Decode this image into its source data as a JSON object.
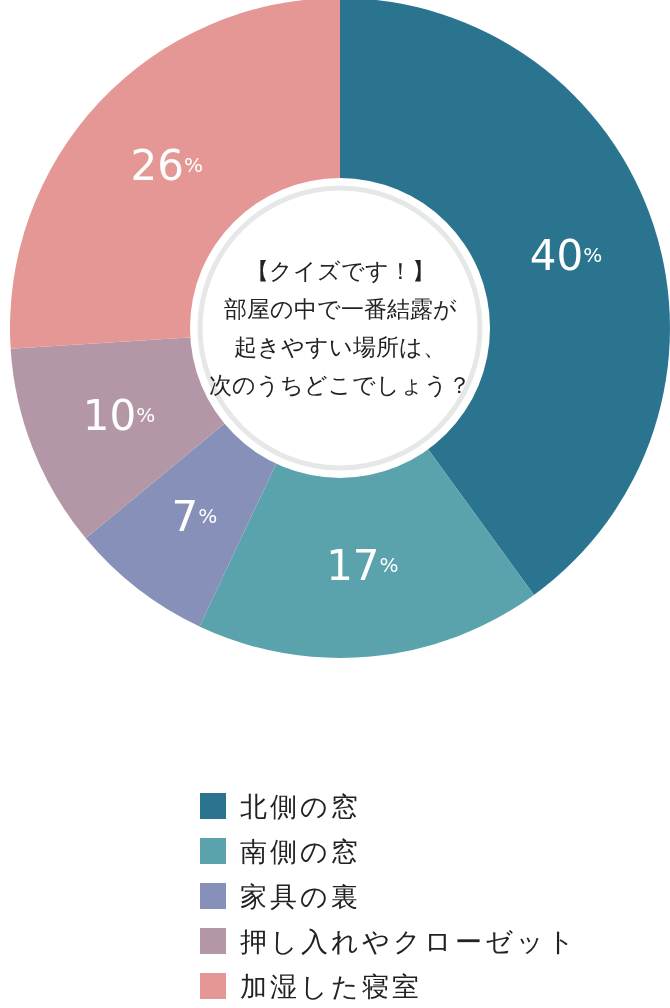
{
  "chart_data": {
    "type": "donut",
    "title": "【クイズです！】",
    "annotations": [
      "部屋の中で一番結露が",
      "起きやすい場所は、",
      "次のうちどこでしょう？"
    ],
    "categories": [
      "北側の窓",
      "南側の窓",
      "家具の裏",
      "押し入れやクローゼット",
      "加湿した寝室"
    ],
    "values": [
      40,
      17,
      7,
      10,
      26
    ],
    "colors": [
      "#2b7490",
      "#5aa3ac",
      "#8790b8",
      "#b497a6",
      "#e49794"
    ],
    "value_labels": [
      "40%",
      "17%",
      "7%",
      "10%",
      "26%"
    ],
    "legend": "bottom"
  }
}
